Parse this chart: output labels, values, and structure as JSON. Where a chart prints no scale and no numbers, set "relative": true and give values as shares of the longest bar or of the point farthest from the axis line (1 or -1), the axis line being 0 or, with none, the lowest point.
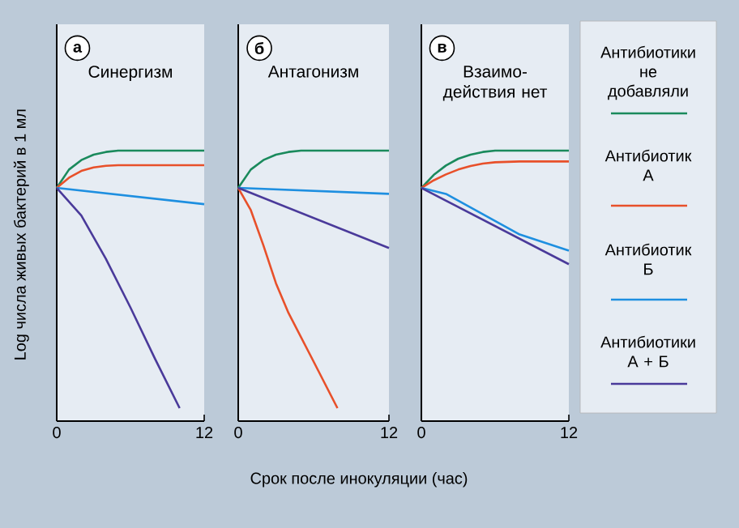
{
  "chart_data": [
    {
      "type": "line",
      "title": "Синергизм",
      "annotations": [
        "а"
      ],
      "ylabel": "Log числа живых бактерий в 1 мл",
      "relative": true,
      "xlim": [
        0,
        12
      ],
      "xticks": [
        0,
        12
      ],
      "tick_labels": "x",
      "series": [
        {
          "color": "#1a8a5c",
          "x": [
            0,
            1,
            2,
            3,
            4,
            5,
            6,
            12
          ],
          "values": [
            0.862,
            0.93,
            0.965,
            0.985,
            0.995,
            1,
            1,
            1
          ]
        },
        {
          "color": "#e8502a",
          "x": [
            0,
            1,
            2,
            3,
            4,
            5,
            6,
            12
          ],
          "values": [
            0.862,
            0.9,
            0.925,
            0.938,
            0.944,
            0.946,
            0.946,
            0.946
          ]
        },
        {
          "color": "#1e8fe0",
          "x": [
            0,
            12
          ],
          "values": [
            0.862,
            0.802
          ]
        },
        {
          "color": "#4a3a9a",
          "x": [
            0,
            2,
            4,
            6,
            8,
            10
          ],
          "values": [
            0.862,
            0.76,
            0.6,
            0.42,
            0.23,
            0.048
          ]
        }
      ]
    },
    {
      "type": "line",
      "title": "Антагонизм",
      "annotations": [
        "б"
      ],
      "xlabel": "Срок после инокуляции (час)",
      "relative": true,
      "xlim": [
        0,
        12
      ],
      "xticks": [
        0,
        12
      ],
      "tick_labels": "x",
      "series": [
        {
          "color": "#1a8a5c",
          "x": [
            0,
            1,
            2,
            3,
            4,
            5,
            6,
            12
          ],
          "values": [
            0.862,
            0.93,
            0.965,
            0.985,
            0.995,
            1,
            1,
            1
          ]
        },
        {
          "color": "#e8502a",
          "x": [
            0,
            1,
            2,
            3,
            4,
            6,
            7.9
          ],
          "values": [
            0.862,
            0.78,
            0.65,
            0.51,
            0.4,
            0.22,
            0.048
          ]
        },
        {
          "color": "#1e8fe0",
          "x": [
            0,
            12
          ],
          "values": [
            0.862,
            0.84
          ]
        },
        {
          "color": "#4a3a9a",
          "x": [
            0,
            12
          ],
          "values": [
            0.862,
            0.64
          ]
        }
      ]
    },
    {
      "type": "line",
      "title": "Взаимо-действия нет",
      "annotations": [
        "в"
      ],
      "relative": true,
      "xlim": [
        0,
        12
      ],
      "xticks": [
        0,
        12
      ],
      "tick_labels": "x",
      "legend": "right",
      "series": [
        {
          "name": "Антибиотики не добавляли",
          "color": "#1a8a5c",
          "x": [
            0,
            1,
            2,
            3,
            4,
            5,
            6,
            8,
            12
          ],
          "values": [
            0.862,
            0.91,
            0.945,
            0.97,
            0.985,
            0.995,
            1,
            1,
            1
          ]
        },
        {
          "name": "Антибиотик А",
          "color": "#e8502a",
          "x": [
            0,
            1,
            2,
            3,
            4,
            5,
            6,
            8,
            12
          ],
          "values": [
            0.862,
            0.89,
            0.912,
            0.93,
            0.943,
            0.952,
            0.957,
            0.96,
            0.96
          ]
        },
        {
          "name": "Антибиотик Б",
          "color": "#1e8fe0",
          "x": [
            0,
            2,
            4,
            6,
            8,
            12
          ],
          "values": [
            0.862,
            0.84,
            0.79,
            0.74,
            0.69,
            0.63
          ]
        },
        {
          "name": "Антибиотики А + Б",
          "color": "#4a3a9a",
          "x": [
            0,
            12
          ],
          "values": [
            0.862,
            0.58
          ]
        }
      ]
    }
  ]
}
